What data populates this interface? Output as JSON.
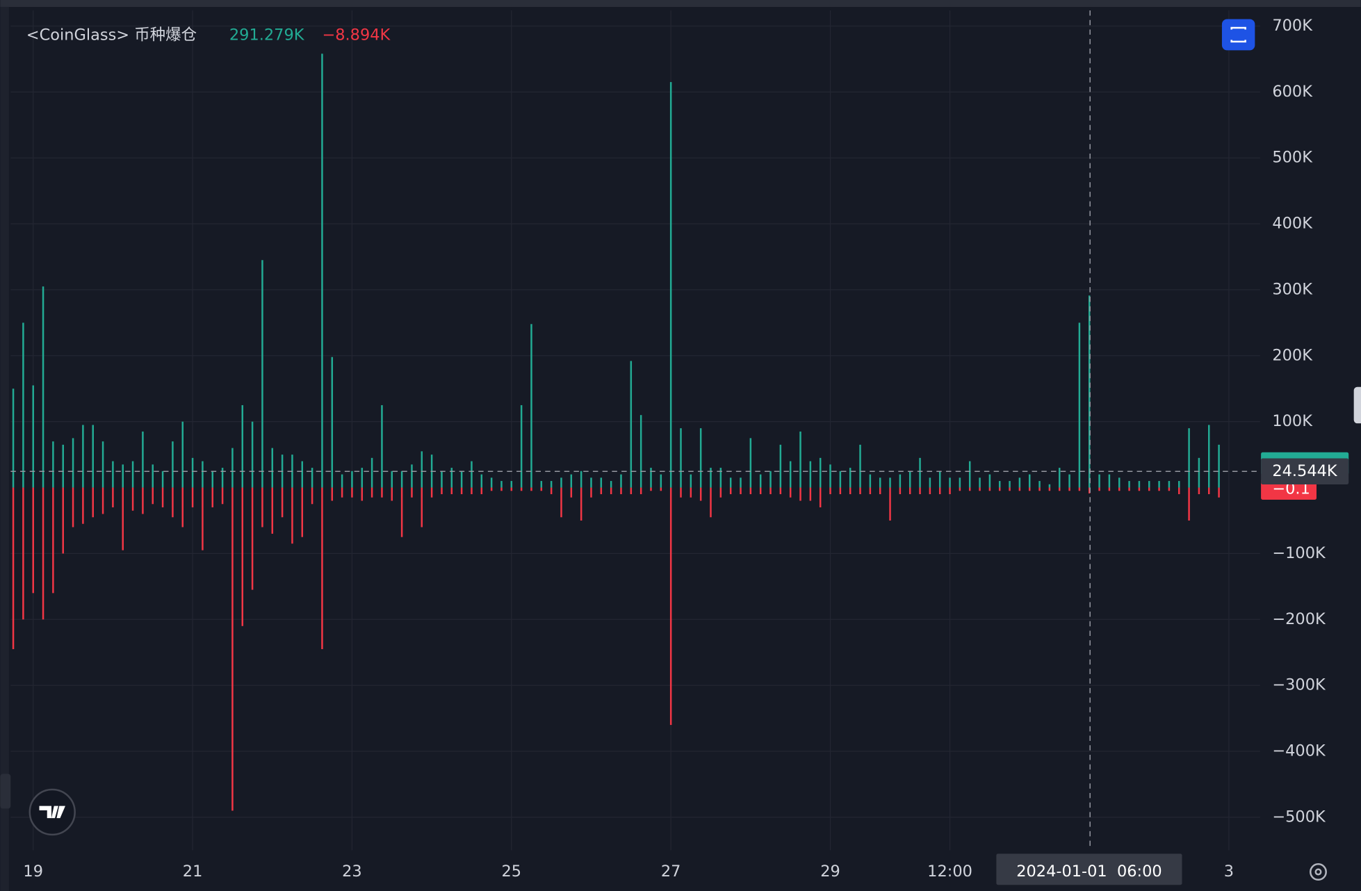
{
  "chart_data": {
    "type": "bar",
    "title": "<CoinGlass> 币种爆仓",
    "readout": [
      "291.279K",
      "−8.894K"
    ],
    "crosshair_value": 24544,
    "tags": [
      "24.544K",
      "−0.1"
    ],
    "crosshair_x_label": "2024-01-01  06:00",
    "categories": [
      null,
      null,
      "19",
      null,
      null,
      null,
      null,
      null,
      null,
      null,
      null,
      null,
      null,
      null,
      null,
      null,
      null,
      null,
      "21",
      null,
      null,
      null,
      null,
      null,
      null,
      null,
      null,
      null,
      null,
      null,
      null,
      null,
      null,
      null,
      "23",
      null,
      null,
      null,
      null,
      null,
      null,
      null,
      null,
      null,
      null,
      null,
      null,
      null,
      null,
      null,
      "25",
      null,
      null,
      null,
      null,
      null,
      null,
      null,
      null,
      null,
      null,
      null,
      null,
      null,
      null,
      null,
      "27",
      null,
      null,
      null,
      null,
      null,
      null,
      null,
      null,
      null,
      null,
      null,
      null,
      null,
      null,
      null,
      "29",
      null,
      null,
      null,
      null,
      null,
      null,
      null,
      null,
      null,
      null,
      null,
      "12:00",
      null,
      null,
      null,
      null,
      null,
      null,
      null,
      null,
      null,
      null,
      null,
      null,
      null,
      null,
      null,
      null,
      null,
      null,
      null,
      null,
      null,
      null,
      null,
      null,
      null,
      null,
      null,
      "3"
    ],
    "series": [
      {
        "color": "#22ab94",
        "values": [
          150000,
          250000,
          155000,
          305000,
          70000,
          65000,
          75000,
          95000,
          95000,
          70000,
          40000,
          35000,
          40000,
          85000,
          35000,
          25000,
          70000,
          100000,
          45000,
          40000,
          25000,
          30000,
          60000,
          125000,
          100000,
          345000,
          60000,
          50000,
          50000,
          40000,
          30000,
          658000,
          198000,
          20000,
          25000,
          30000,
          45000,
          125000,
          25000,
          25000,
          35000,
          55000,
          50000,
          25000,
          30000,
          25000,
          40000,
          20000,
          15000,
          10000,
          10000,
          125000,
          248000,
          10000,
          10000,
          15000,
          20000,
          25000,
          15000,
          15000,
          10000,
          20000,
          192000,
          110000,
          30000,
          20000,
          615000,
          90000,
          20000,
          90000,
          30000,
          30000,
          15000,
          15000,
          75000,
          20000,
          25000,
          65000,
          40000,
          85000,
          40000,
          45000,
          35000,
          25000,
          30000,
          65000,
          20000,
          15000,
          15000,
          20000,
          25000,
          45000,
          15000,
          25000,
          15000,
          15000,
          40000,
          15000,
          20000,
          10000,
          10000,
          15000,
          20000,
          10000,
          5000,
          30000,
          20000,
          250000,
          291279,
          20000,
          20000,
          15000,
          10000,
          10000,
          10000,
          10000,
          10000,
          10000,
          90000,
          45000,
          95000,
          65000,
          null
        ]
      },
      {
        "color": "#f23645",
        "values": [
          -245000,
          -200000,
          -160000,
          -200000,
          -160000,
          -100000,
          -60000,
          -55000,
          -45000,
          -40000,
          -30000,
          -95000,
          -35000,
          -40000,
          -25000,
          -30000,
          -45000,
          -60000,
          -30000,
          -95000,
          -30000,
          -25000,
          -490000,
          -210000,
          -155000,
          -60000,
          -70000,
          -45000,
          -85000,
          -75000,
          -25000,
          -245000,
          -20000,
          -15000,
          -15000,
          -20000,
          -15000,
          -15000,
          -20000,
          -75000,
          -15000,
          -60000,
          -15000,
          -10000,
          -10000,
          -10000,
          -10000,
          -10000,
          -5000,
          -5000,
          -5000,
          -5000,
          -5000,
          -5000,
          -10000,
          -45000,
          -15000,
          -50000,
          -15000,
          -10000,
          -10000,
          -10000,
          -10000,
          -10000,
          -5000,
          -5000,
          -360000,
          -15000,
          -15000,
          -20000,
          -45000,
          -15000,
          -10000,
          -10000,
          -10000,
          -10000,
          -10000,
          -10000,
          -15000,
          -20000,
          -20000,
          -30000,
          -10000,
          -10000,
          -10000,
          -10000,
          -10000,
          -10000,
          -50000,
          -10000,
          -10000,
          -10000,
          -10000,
          -10000,
          -10000,
          -5000,
          -5000,
          -5000,
          -5000,
          -5000,
          -5000,
          -5000,
          -5000,
          -5000,
          -5000,
          -5000,
          -5000,
          -5000,
          -8894,
          -5000,
          -5000,
          -5000,
          -5000,
          -5000,
          -5000,
          -5000,
          -5000,
          -10000,
          -50000,
          -10000,
          -10000,
          -15000,
          null
        ]
      }
    ],
    "ylim": [
      -550000,
      720000
    ],
    "yticks": [
      {
        "value": -500000,
        "label": "−500K"
      },
      {
        "value": -400000,
        "label": "−400K"
      },
      {
        "value": -300000,
        "label": "−300K"
      },
      {
        "value": -200000,
        "label": "−200K"
      },
      {
        "value": -100000,
        "label": "−100K"
      },
      {
        "value": 100000,
        "label": "100K"
      },
      {
        "value": 200000,
        "label": "200K"
      },
      {
        "value": 300000,
        "label": "300K"
      },
      {
        "value": 400000,
        "label": "400K"
      },
      {
        "value": 500000,
        "label": "500K"
      },
      {
        "value": 600000,
        "label": "600K"
      },
      {
        "value": 700000,
        "label": "700K"
      }
    ],
    "grid": true
  }
}
